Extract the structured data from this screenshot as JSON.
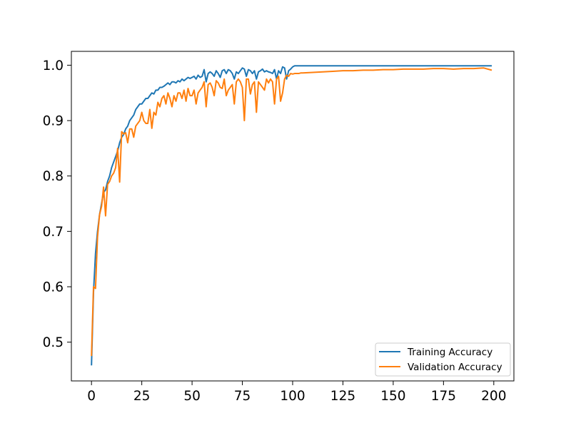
{
  "chart_data": {
    "type": "line",
    "title": "",
    "xlabel": "",
    "ylabel": "",
    "xlim": [
      -10,
      210
    ],
    "ylim": [
      0.43,
      1.025
    ],
    "xticks": [
      0,
      25,
      50,
      75,
      100,
      125,
      150,
      175,
      200
    ],
    "yticks": [
      0.5,
      0.6,
      0.7,
      0.8,
      0.9,
      1.0
    ],
    "grid": false,
    "legend_position": "lower-right",
    "series": [
      {
        "name": "Training Accuracy",
        "color": "#1f77b4",
        "x": [
          0,
          1,
          2,
          3,
          4,
          5,
          6,
          7,
          8,
          9,
          10,
          11,
          12,
          13,
          14,
          15,
          16,
          17,
          18,
          19,
          20,
          21,
          22,
          23,
          24,
          25,
          26,
          27,
          28,
          29,
          30,
          31,
          32,
          33,
          34,
          35,
          36,
          37,
          38,
          39,
          40,
          41,
          42,
          43,
          44,
          45,
          46,
          47,
          48,
          49,
          50,
          51,
          52,
          53,
          54,
          55,
          56,
          57,
          58,
          59,
          60,
          61,
          62,
          63,
          64,
          65,
          66,
          67,
          68,
          69,
          70,
          71,
          72,
          73,
          74,
          75,
          76,
          77,
          78,
          79,
          80,
          81,
          82,
          83,
          84,
          85,
          86,
          87,
          88,
          89,
          90,
          91,
          92,
          93,
          94,
          95,
          96,
          97,
          98,
          99,
          100,
          101,
          102,
          103,
          104,
          105,
          110,
          115,
          120,
          125,
          130,
          135,
          140,
          145,
          150,
          155,
          160,
          165,
          170,
          175,
          180,
          185,
          190,
          195,
          199
        ],
        "y": [
          0.458,
          0.59,
          0.66,
          0.7,
          0.73,
          0.75,
          0.77,
          0.775,
          0.79,
          0.8,
          0.815,
          0.825,
          0.835,
          0.845,
          0.86,
          0.87,
          0.875,
          0.885,
          0.89,
          0.9,
          0.905,
          0.91,
          0.92,
          0.925,
          0.93,
          0.93,
          0.935,
          0.94,
          0.94,
          0.945,
          0.95,
          0.948,
          0.955,
          0.955,
          0.96,
          0.96,
          0.962,
          0.965,
          0.968,
          0.965,
          0.97,
          0.97,
          0.968,
          0.972,
          0.97,
          0.975,
          0.972,
          0.975,
          0.978,
          0.976,
          0.978,
          0.98,
          0.975,
          0.982,
          0.978,
          0.98,
          0.992,
          0.97,
          0.985,
          0.988,
          0.985,
          0.98,
          0.99,
          0.985,
          0.978,
          0.99,
          0.992,
          0.985,
          0.992,
          0.99,
          0.985,
          0.975,
          0.988,
          0.985,
          0.99,
          0.995,
          0.993,
          0.98,
          0.992,
          0.99,
          0.985,
          0.99,
          0.975,
          0.988,
          0.99,
          0.993,
          0.988,
          0.99,
          0.988,
          0.987,
          0.985,
          0.992,
          0.975,
          0.99,
          0.985,
          0.997,
          0.995,
          0.975,
          0.99,
          0.993,
          0.997,
          0.999,
          0.999,
          0.999,
          0.999,
          0.999,
          0.999,
          0.999,
          0.999,
          0.999,
          0.999,
          0.999,
          0.999,
          0.999,
          0.999,
          0.999,
          0.999,
          0.999,
          0.999,
          0.999,
          0.999,
          0.999,
          0.999,
          0.999,
          0.999
        ]
      },
      {
        "name": "Validation Accuracy",
        "color": "#ff7f0e",
        "x": [
          0,
          1,
          2,
          3,
          4,
          5,
          6,
          7,
          8,
          9,
          10,
          11,
          12,
          13,
          14,
          15,
          16,
          17,
          18,
          19,
          20,
          21,
          22,
          23,
          24,
          25,
          26,
          27,
          28,
          29,
          30,
          31,
          32,
          33,
          34,
          35,
          36,
          37,
          38,
          39,
          40,
          41,
          42,
          43,
          44,
          45,
          46,
          47,
          48,
          49,
          50,
          51,
          52,
          53,
          54,
          55,
          56,
          57,
          58,
          59,
          60,
          61,
          62,
          63,
          64,
          65,
          66,
          67,
          68,
          69,
          70,
          71,
          72,
          73,
          74,
          75,
          76,
          77,
          78,
          79,
          80,
          81,
          82,
          83,
          84,
          85,
          86,
          87,
          88,
          89,
          90,
          91,
          92,
          93,
          94,
          95,
          96,
          97,
          98,
          99,
          100,
          101,
          102,
          103,
          104,
          105,
          110,
          115,
          120,
          125,
          130,
          135,
          140,
          145,
          150,
          155,
          160,
          165,
          170,
          175,
          180,
          185,
          190,
          195,
          199
        ],
        "y": [
          0.475,
          0.6,
          0.597,
          0.69,
          0.73,
          0.745,
          0.78,
          0.728,
          0.785,
          0.79,
          0.8,
          0.805,
          0.815,
          0.85,
          0.789,
          0.88,
          0.876,
          0.878,
          0.86,
          0.885,
          0.885,
          0.87,
          0.89,
          0.895,
          0.9,
          0.915,
          0.9,
          0.895,
          0.895,
          0.92,
          0.886,
          0.915,
          0.91,
          0.933,
          0.925,
          0.94,
          0.945,
          0.93,
          0.95,
          0.94,
          0.925,
          0.945,
          0.935,
          0.95,
          0.95,
          0.94,
          0.955,
          0.935,
          0.958,
          0.945,
          0.945,
          0.955,
          0.93,
          0.95,
          0.955,
          0.96,
          0.97,
          0.925,
          0.965,
          0.968,
          0.96,
          0.945,
          0.972,
          0.968,
          0.96,
          0.958,
          0.975,
          0.945,
          0.955,
          0.96,
          0.965,
          0.93,
          0.97,
          0.975,
          0.97,
          0.96,
          0.9,
          0.975,
          0.975,
          0.948,
          0.965,
          0.97,
          0.915,
          0.97,
          0.965,
          0.96,
          0.955,
          0.975,
          0.968,
          0.975,
          0.97,
          0.93,
          0.975,
          0.98,
          0.935,
          0.95,
          0.975,
          0.982,
          0.98,
          0.985,
          0.984,
          0.985,
          0.985,
          0.985,
          0.986,
          0.986,
          0.987,
          0.988,
          0.989,
          0.99,
          0.99,
          0.991,
          0.991,
          0.992,
          0.992,
          0.993,
          0.993,
          0.993,
          0.994,
          0.994,
          0.993,
          0.994,
          0.994,
          0.995,
          0.991
        ]
      }
    ]
  }
}
